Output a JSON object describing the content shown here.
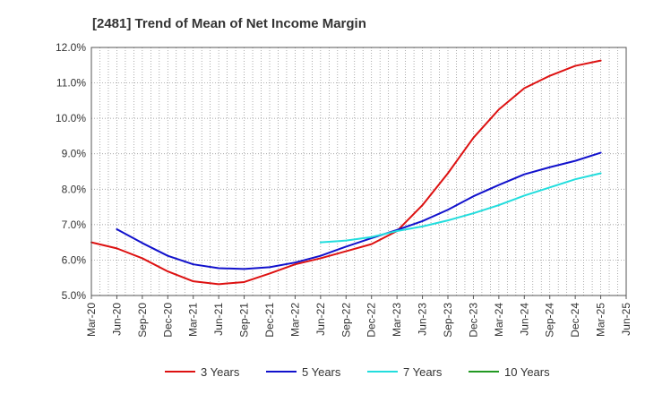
{
  "chart_data": {
    "type": "line",
    "title": "[2481]  Trend of Mean of Net Income Margin",
    "xlabel": "",
    "ylabel": "",
    "x_tick_labels": [
      "Mar-20",
      "Jun-20",
      "Sep-20",
      "Dec-20",
      "Mar-21",
      "Jun-21",
      "Sep-21",
      "Dec-21",
      "Mar-22",
      "Jun-22",
      "Sep-22",
      "Dec-22",
      "Mar-23",
      "Jun-23",
      "Sep-23",
      "Dec-23",
      "Mar-24",
      "Jun-24",
      "Sep-24",
      "Dec-24",
      "Mar-25",
      "Jun-25"
    ],
    "y_tick_labels": [
      "5.0%",
      "6.0%",
      "7.0%",
      "8.0%",
      "9.0%",
      "10.0%",
      "11.0%",
      "12.0%"
    ],
    "ylim": [
      5.0,
      12.0
    ],
    "grid": true,
    "legend_position": "bottom",
    "series": [
      {
        "name": "3 Years",
        "color": "#dd1111",
        "x": [
          "Mar-20",
          "Jun-20",
          "Sep-20",
          "Dec-20",
          "Mar-21",
          "Jun-21",
          "Sep-21",
          "Dec-21",
          "Mar-22",
          "Jun-22",
          "Sep-22",
          "Dec-22",
          "Mar-23",
          "Jun-23",
          "Sep-23",
          "Dec-23",
          "Mar-24",
          "Jun-24",
          "Sep-24",
          "Dec-24",
          "Mar-25"
        ],
        "values": [
          6.5,
          6.33,
          6.05,
          5.68,
          5.4,
          5.32,
          5.38,
          5.62,
          5.88,
          6.05,
          6.25,
          6.45,
          6.82,
          7.55,
          8.45,
          9.45,
          10.25,
          10.85,
          11.2,
          11.48,
          11.63
        ]
      },
      {
        "name": "5 Years",
        "color": "#1111cc",
        "x": [
          "Jun-20",
          "Sep-20",
          "Dec-20",
          "Mar-21",
          "Jun-21",
          "Sep-21",
          "Dec-21",
          "Mar-22",
          "Jun-22",
          "Sep-22",
          "Dec-22",
          "Mar-23",
          "Jun-23",
          "Sep-23",
          "Dec-23",
          "Mar-24",
          "Jun-24",
          "Sep-24",
          "Dec-24",
          "Mar-25"
        ],
        "values": [
          6.87,
          6.48,
          6.12,
          5.88,
          5.77,
          5.75,
          5.8,
          5.93,
          6.12,
          6.38,
          6.62,
          6.85,
          7.1,
          7.42,
          7.8,
          8.12,
          8.42,
          8.62,
          8.8,
          9.03
        ]
      },
      {
        "name": "7 Years",
        "color": "#22dddd",
        "x": [
          "Jun-22",
          "Sep-22",
          "Dec-22",
          "Mar-23",
          "Jun-23",
          "Sep-23",
          "Dec-23",
          "Mar-24",
          "Jun-24",
          "Sep-24",
          "Dec-24",
          "Mar-25"
        ],
        "values": [
          6.5,
          6.55,
          6.65,
          6.82,
          6.95,
          7.12,
          7.32,
          7.55,
          7.82,
          8.05,
          8.28,
          8.45
        ]
      },
      {
        "name": "10 Years",
        "color": "#229922",
        "x": [],
        "values": []
      }
    ]
  }
}
